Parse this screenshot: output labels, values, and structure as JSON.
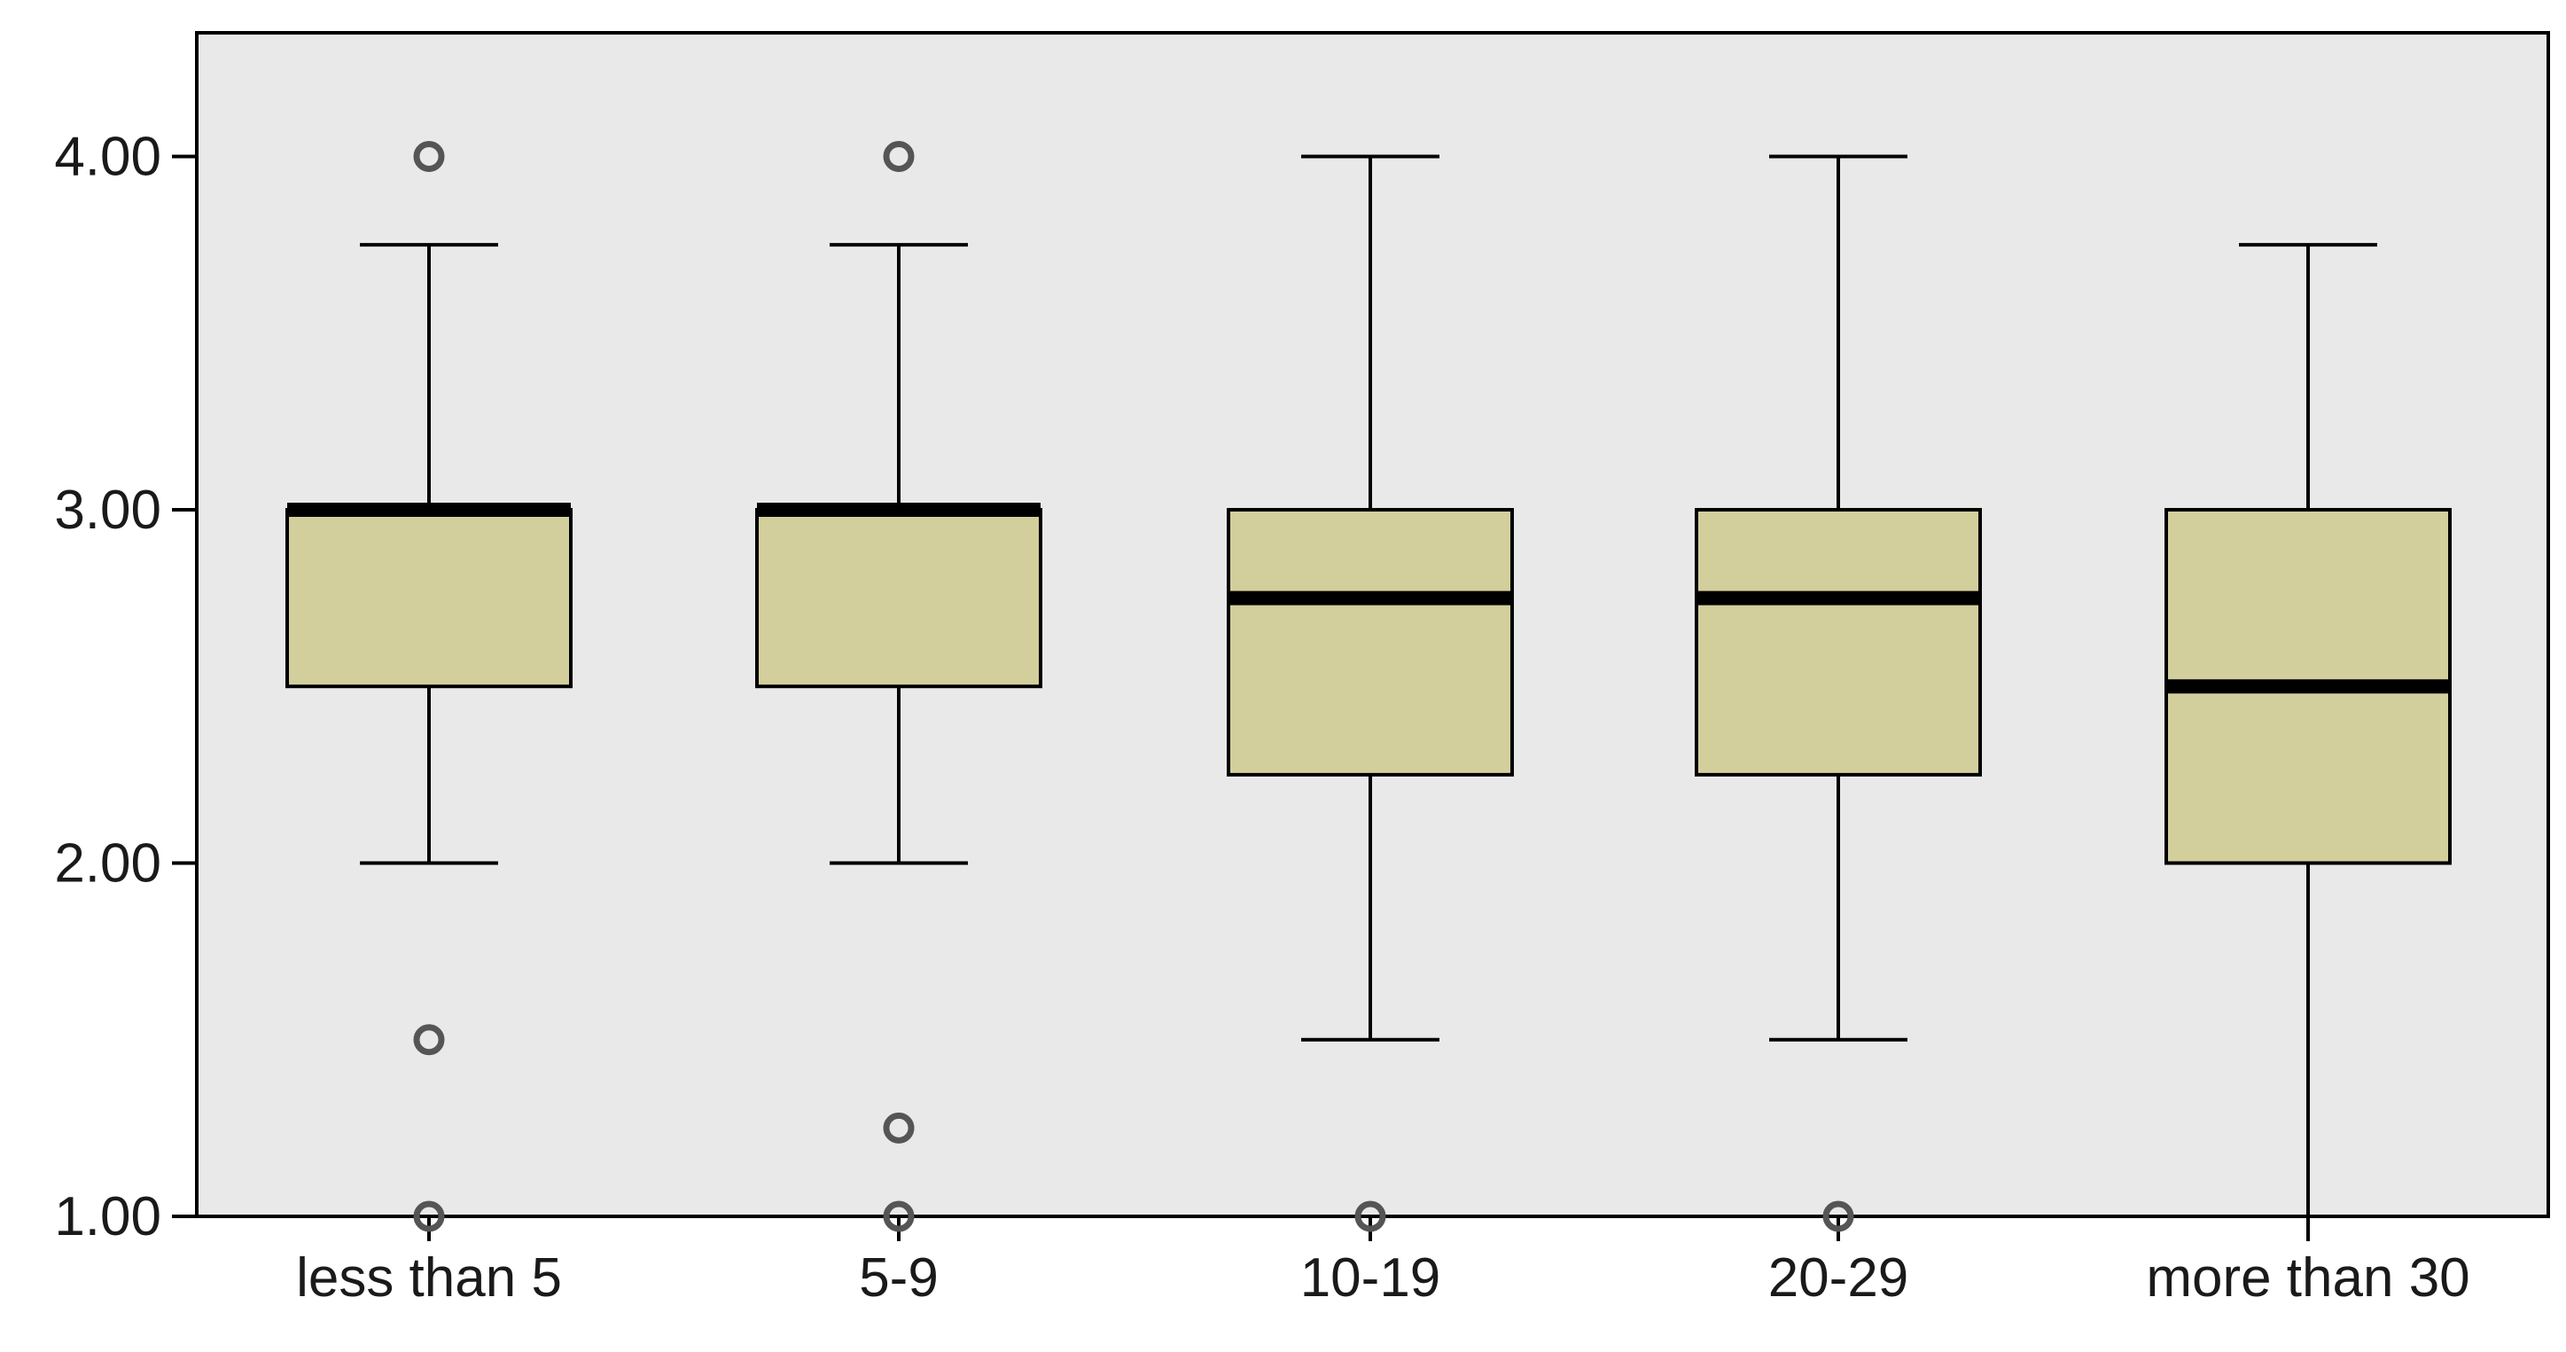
{
  "chart_data": {
    "type": "boxplot",
    "title": "",
    "xlabel": "",
    "ylabel": "",
    "ylim": [
      1.0,
      4.35
    ],
    "yticks": [
      1.0,
      2.0,
      3.0,
      4.0
    ],
    "ytick_labels": [
      "1.00",
      "2.00",
      "3.00",
      "4.00"
    ],
    "grid": false,
    "legend": "none",
    "categories": [
      "less than 5",
      "5-9",
      "10-19",
      "20-29",
      "more than 30"
    ],
    "boxes": [
      {
        "category": "less than 5",
        "whisker_low": 2.0,
        "q1": 2.5,
        "median": 3.0,
        "q3": 3.0,
        "whisker_high": 3.75,
        "outliers": [
          4.0,
          1.5,
          1.0
        ]
      },
      {
        "category": "5-9",
        "whisker_low": 2.0,
        "q1": 2.5,
        "median": 3.0,
        "q3": 3.0,
        "whisker_high": 3.75,
        "outliers": [
          4.0,
          1.25,
          1.0
        ]
      },
      {
        "category": "10-19",
        "whisker_low": 1.5,
        "q1": 2.25,
        "median": 2.75,
        "q3": 3.0,
        "whisker_high": 4.0,
        "outliers": [
          1.0
        ]
      },
      {
        "category": "20-29",
        "whisker_low": 1.5,
        "q1": 2.25,
        "median": 2.75,
        "q3": 3.0,
        "whisker_high": 4.0,
        "outliers": [
          1.0
        ]
      },
      {
        "category": "more than 30",
        "whisker_low": 1.0,
        "q1": 2.0,
        "median": 2.5,
        "q3": 3.0,
        "whisker_high": 3.75,
        "outliers": []
      }
    ],
    "colors": {
      "plot_background": "#e9e9e9",
      "box_fill": "#d3cf9c",
      "stroke": "#000000",
      "outlier_stroke": "#555555"
    }
  }
}
